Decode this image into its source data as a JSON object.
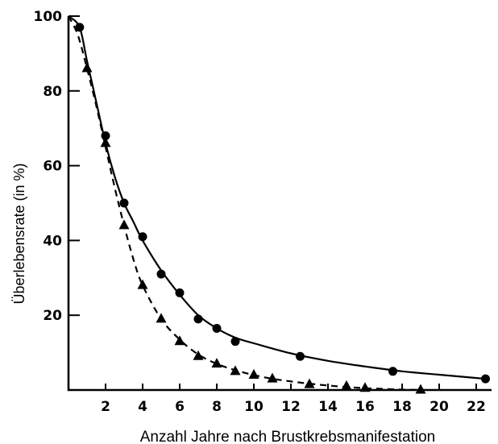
{
  "chart_data": {
    "type": "line",
    "xlabel": "Anzahl Jahre nach Brustkrebsmanifestation",
    "ylabel": "Überlebensrate (in %)",
    "xlim": [
      0,
      23
    ],
    "ylim": [
      0,
      100
    ],
    "x_ticks": [
      2,
      4,
      6,
      8,
      10,
      12,
      14,
      16,
      18,
      20,
      22
    ],
    "y_ticks": [
      20,
      40,
      60,
      80,
      100
    ],
    "grid": false,
    "series": [
      {
        "marker": "circle",
        "line_style": "solid",
        "x": [
          0.6,
          2.0,
          3.0,
          4.0,
          5.0,
          6.0,
          7.0,
          8.0,
          9.0,
          12.5,
          17.5,
          22.5
        ],
        "y": [
          97,
          68,
          50,
          41,
          31,
          26,
          19,
          16.5,
          13,
          9,
          5,
          3
        ],
        "curve": {
          "x": [
            0.0,
            0.6,
            1.0,
            1.5,
            2.0,
            2.5,
            3.0,
            3.5,
            4.0,
            5.0,
            6.0,
            7.0,
            8.0,
            9.0,
            10.0,
            12.0,
            14.0,
            16.0,
            18.0,
            20.0,
            22.5
          ],
          "y": [
            100,
            97,
            88,
            77,
            66,
            57,
            50,
            45,
            40,
            32,
            25.5,
            20,
            16.5,
            14,
            12.5,
            9.8,
            7.8,
            6.3,
            5.0,
            4.1,
            3.0
          ]
        }
      },
      {
        "marker": "triangle",
        "line_style": "dashed",
        "x": [
          1.0,
          2.0,
          3.0,
          4.0,
          5.0,
          6.0,
          7.0,
          8.0,
          9.0,
          10.0,
          11.0,
          13.0,
          15.0,
          16.0,
          19.0
        ],
        "y": [
          86,
          66,
          44,
          28,
          19,
          13,
          9,
          7,
          5,
          4,
          3,
          1.5,
          1,
          0.5,
          0
        ],
        "curve": {
          "x": [
            0.0,
            0.5,
            1.0,
            1.5,
            2.0,
            2.5,
            3.0,
            3.5,
            4.0,
            5.0,
            6.0,
            7.0,
            8.0,
            9.0,
            10.0,
            11.0,
            12.0,
            13.0,
            14.0,
            15.0,
            16.0,
            17.0,
            18.0,
            19.0
          ],
          "y": [
            100,
            95,
            86,
            76,
            65,
            54,
            44,
            35,
            28,
            19,
            13.5,
            9.5,
            7,
            5.3,
            4,
            3,
            2.3,
            1.7,
            1.2,
            0.8,
            0.5,
            0.3,
            0.1,
            0
          ]
        }
      }
    ]
  }
}
